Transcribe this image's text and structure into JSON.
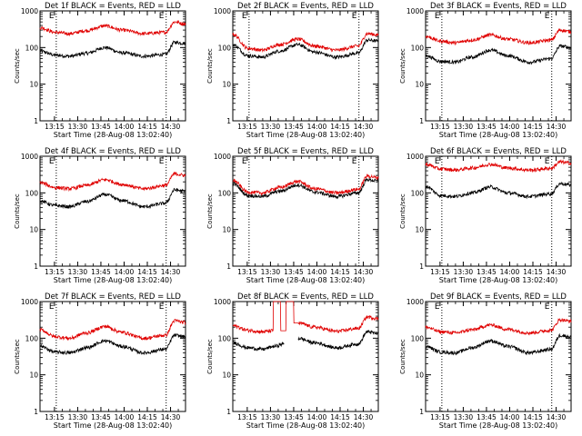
{
  "figure": {
    "xlabel": "Start Time (28-Aug-08 13:02:40)",
    "ylabel": "Counts/sec"
  },
  "chart_data": [
    {
      "type": "line",
      "yscale": "log",
      "ylim": [
        1,
        1000
      ],
      "xlim_minutes": [
        3,
        97
      ],
      "title": "Det 1f BLACK = Events, RED = LLD",
      "xlabel": "Start Time (28-Aug-08 13:02:40)",
      "ylabel": "Counts/sec",
      "x_ticks": [
        "13:15",
        "13:30",
        "13:45",
        "14:00",
        "14:15",
        "14:30"
      ],
      "y_ticks": [
        "1",
        "10",
        "100",
        "1000"
      ],
      "markers": [
        {
          "label": "E",
          "x_minute": 13.5
        },
        {
          "label": "E",
          "x_minute": 84.5
        }
      ],
      "series": [
        {
          "color": "#000000",
          "x_minute": [
            3,
            13,
            22,
            33,
            45,
            56,
            70,
            84,
            90,
            97
          ],
          "values": [
            80,
            62,
            58,
            70,
            100,
            72,
            58,
            65,
            140,
            130
          ]
        },
        {
          "color": "#e00000",
          "x_minute": [
            3,
            13,
            22,
            33,
            45,
            56,
            70,
            84,
            90,
            97
          ],
          "values": [
            350,
            260,
            240,
            290,
            390,
            300,
            240,
            260,
            500,
            440
          ]
        }
      ]
    },
    {
      "type": "line",
      "yscale": "log",
      "ylim": [
        1,
        1000
      ],
      "xlim_minutes": [
        3,
        97
      ],
      "title": "Det 2f BLACK = Events, RED = LLD",
      "xlabel": "Start Time (28-Aug-08 13:02:40)",
      "ylabel": "Counts/sec",
      "x_ticks": [
        "13:15",
        "13:30",
        "13:45",
        "14:00",
        "14:15",
        "14:30"
      ],
      "y_ticks": [
        "1",
        "10",
        "100",
        "1000"
      ],
      "markers": [
        {
          "label": "E",
          "x_minute": 13.5
        },
        {
          "label": "E",
          "x_minute": 84.5
        }
      ],
      "series": [
        {
          "color": "#000000",
          "x_minute": [
            3,
            13,
            22,
            33,
            45,
            56,
            70,
            84,
            90,
            97
          ],
          "values": [
            120,
            60,
            55,
            80,
            120,
            75,
            55,
            70,
            160,
            150
          ]
        },
        {
          "color": "#e00000",
          "x_minute": [
            3,
            13,
            22,
            33,
            45,
            56,
            70,
            84,
            90,
            97
          ],
          "values": [
            230,
            95,
            85,
            120,
            170,
            110,
            85,
            110,
            240,
            220
          ]
        }
      ]
    },
    {
      "type": "line",
      "yscale": "log",
      "ylim": [
        1,
        1000
      ],
      "xlim_minutes": [
        3,
        97
      ],
      "title": "Det 3f BLACK = Events, RED = LLD",
      "xlabel": "Start Time (28-Aug-08 13:02:40)",
      "ylabel": "Counts/sec",
      "x_ticks": [
        "13:15",
        "13:30",
        "13:45",
        "14:00",
        "14:15",
        "14:30"
      ],
      "y_ticks": [
        "1",
        "10",
        "100",
        "1000"
      ],
      "markers": [
        {
          "label": "E",
          "x_minute": 13.5
        },
        {
          "label": "E",
          "x_minute": 84.5
        }
      ],
      "series": [
        {
          "color": "#000000",
          "x_minute": [
            3,
            13,
            22,
            33,
            45,
            56,
            70,
            84,
            90,
            97
          ],
          "values": [
            60,
            42,
            40,
            55,
            85,
            60,
            40,
            50,
            110,
            100
          ]
        },
        {
          "color": "#e00000",
          "x_minute": [
            3,
            13,
            22,
            33,
            45,
            56,
            70,
            84,
            90,
            97
          ],
          "values": [
            200,
            150,
            135,
            160,
            220,
            170,
            135,
            160,
            300,
            270
          ]
        }
      ]
    },
    {
      "type": "line",
      "yscale": "log",
      "ylim": [
        1,
        1000
      ],
      "xlim_minutes": [
        3,
        97
      ],
      "title": "Det 4f BLACK = Events, RED = LLD",
      "xlabel": "Start Time (28-Aug-08 13:02:40)",
      "ylabel": "Counts/sec",
      "x_ticks": [
        "13:15",
        "13:30",
        "13:45",
        "14:00",
        "14:15",
        "14:30"
      ],
      "y_ticks": [
        "1",
        "10",
        "100",
        "1000"
      ],
      "markers": [
        {
          "label": "E",
          "x_minute": 13.5
        },
        {
          "label": "E",
          "x_minute": 84.5
        }
      ],
      "series": [
        {
          "color": "#000000",
          "x_minute": [
            3,
            13,
            22,
            33,
            45,
            56,
            70,
            84,
            90,
            97
          ],
          "values": [
            60,
            45,
            42,
            58,
            90,
            62,
            42,
            52,
            120,
            110
          ]
        },
        {
          "color": "#e00000",
          "x_minute": [
            3,
            13,
            22,
            33,
            45,
            56,
            70,
            84,
            90,
            97
          ],
          "values": [
            190,
            140,
            130,
            160,
            230,
            170,
            130,
            160,
            330,
            300
          ]
        }
      ]
    },
    {
      "type": "line",
      "yscale": "log",
      "ylim": [
        1,
        1000
      ],
      "xlim_minutes": [
        3,
        97
      ],
      "title": "Det 5f BLACK = Events, RED = LLD",
      "xlabel": "Start Time (28-Aug-08 13:02:40)",
      "ylabel": "Counts/sec",
      "x_ticks": [
        "13:15",
        "13:30",
        "13:45",
        "14:00",
        "14:15",
        "14:30"
      ],
      "y_ticks": [
        "1",
        "10",
        "100",
        "1000"
      ],
      "markers": [
        {
          "label": "E",
          "x_minute": 13.5
        },
        {
          "label": "E",
          "x_minute": 84.5
        }
      ],
      "series": [
        {
          "color": "#000000",
          "x_minute": [
            3,
            13,
            22,
            33,
            45,
            56,
            70,
            84,
            90,
            97
          ],
          "values": [
            180,
            85,
            80,
            110,
            165,
            105,
            80,
            100,
            230,
            210
          ]
        },
        {
          "color": "#e00000",
          "x_minute": [
            3,
            13,
            22,
            33,
            45,
            56,
            70,
            84,
            90,
            97
          ],
          "values": [
            220,
            105,
            100,
            140,
            205,
            130,
            100,
            125,
            290,
            260
          ]
        }
      ]
    },
    {
      "type": "line",
      "yscale": "log",
      "ylim": [
        1,
        1000
      ],
      "xlim_minutes": [
        3,
        97
      ],
      "title": "Det 6f BLACK = Events, RED = LLD",
      "xlabel": "Start Time (28-Aug-08 13:02:40)",
      "ylabel": "Counts/sec",
      "x_ticks": [
        "13:15",
        "13:30",
        "13:45",
        "14:00",
        "14:15",
        "14:30"
      ],
      "y_ticks": [
        "1",
        "10",
        "100",
        "1000"
      ],
      "markers": [
        {
          "label": "E",
          "x_minute": 13.5
        },
        {
          "label": "E",
          "x_minute": 84.5
        }
      ],
      "series": [
        {
          "color": "#000000",
          "x_minute": [
            3,
            13,
            22,
            33,
            45,
            56,
            70,
            84,
            90,
            97
          ],
          "values": [
            150,
            85,
            80,
            100,
            145,
            100,
            80,
            95,
            180,
            165
          ]
        },
        {
          "color": "#e00000",
          "x_minute": [
            3,
            13,
            22,
            33,
            45,
            56,
            70,
            84,
            90,
            97
          ],
          "values": [
            600,
            450,
            420,
            480,
            600,
            480,
            420,
            470,
            700,
            650
          ]
        }
      ]
    },
    {
      "type": "line",
      "yscale": "log",
      "ylim": [
        1,
        1000
      ],
      "xlim_minutes": [
        3,
        97
      ],
      "title": "Det 7f BLACK = Events, RED = LLD",
      "xlabel": "Start Time (28-Aug-08 13:02:40)",
      "ylabel": "Counts/sec",
      "x_ticks": [
        "13:15",
        "13:30",
        "13:45",
        "14:00",
        "14:15",
        "14:30"
      ],
      "y_ticks": [
        "1",
        "10",
        "100",
        "1000"
      ],
      "markers": [
        {
          "label": "E",
          "x_minute": 13.5
        },
        {
          "label": "E",
          "x_minute": 84.5
        }
      ],
      "series": [
        {
          "color": "#000000",
          "x_minute": [
            3,
            13,
            22,
            33,
            45,
            56,
            70,
            84,
            90,
            97
          ],
          "values": [
            60,
            42,
            40,
            55,
            85,
            60,
            40,
            50,
            120,
            110
          ]
        },
        {
          "color": "#e00000",
          "x_minute": [
            3,
            13,
            22,
            33,
            45,
            56,
            70,
            84,
            90,
            97
          ],
          "values": [
            170,
            110,
            100,
            140,
            210,
            145,
            100,
            120,
            300,
            270
          ]
        }
      ]
    },
    {
      "type": "line",
      "yscale": "log",
      "ylim": [
        1,
        1000
      ],
      "xlim_minutes": [
        3,
        97
      ],
      "title": "Det 8f BLACK = Events, RED = LLD",
      "xlabel": "Start Time (28-Aug-08 13:02:40)",
      "ylabel": "Counts/sec",
      "x_ticks": [
        "13:15",
        "13:30",
        "13:45",
        "14:00",
        "14:15",
        "14:30"
      ],
      "y_ticks": [
        "1",
        "10",
        "100",
        "1000"
      ],
      "markers": [],
      "series": [
        {
          "color": "#000000",
          "x_minute": [
            3,
            13,
            22,
            30,
            36,
            38,
            45,
            56,
            70,
            84,
            90,
            97
          ],
          "values": [
            75,
            55,
            50,
            60,
            70,
            null,
            100,
            75,
            55,
            70,
            150,
            135
          ]
        },
        {
          "color": "#e00000",
          "x_minute": [
            3,
            13,
            22,
            29,
            29.5,
            33,
            35,
            40,
            45,
            56,
            70,
            84,
            90,
            97
          ],
          "values": [
            220,
            165,
            150,
            160,
            1000,
            1000,
            160,
            1000,
            260,
            200,
            155,
            185,
            380,
            340
          ]
        }
      ]
    },
    {
      "type": "line",
      "yscale": "log",
      "ylim": [
        1,
        1000
      ],
      "xlim_minutes": [
        3,
        97
      ],
      "title": "Det 9f BLACK = Events, RED = LLD",
      "xlabel": "Start Time (28-Aug-08 13:02:40)",
      "ylabel": "Counts/sec",
      "x_ticks": [
        "13:15",
        "13:30",
        "13:45",
        "14:00",
        "14:15",
        "14:30"
      ],
      "y_ticks": [
        "1",
        "10",
        "100",
        "1000"
      ],
      "markers": [
        {
          "label": "E",
          "x_minute": 13.5
        },
        {
          "label": "E",
          "x_minute": 84.5
        }
      ],
      "series": [
        {
          "color": "#000000",
          "x_minute": [
            3,
            13,
            22,
            33,
            45,
            56,
            70,
            84,
            90,
            97
          ],
          "values": [
            60,
            42,
            40,
            55,
            85,
            60,
            40,
            50,
            120,
            110
          ]
        },
        {
          "color": "#e00000",
          "x_minute": [
            3,
            13,
            22,
            33,
            45,
            56,
            70,
            84,
            90,
            97
          ],
          "values": [
            200,
            150,
            140,
            170,
            230,
            175,
            140,
            165,
            320,
            290
          ]
        }
      ]
    }
  ]
}
